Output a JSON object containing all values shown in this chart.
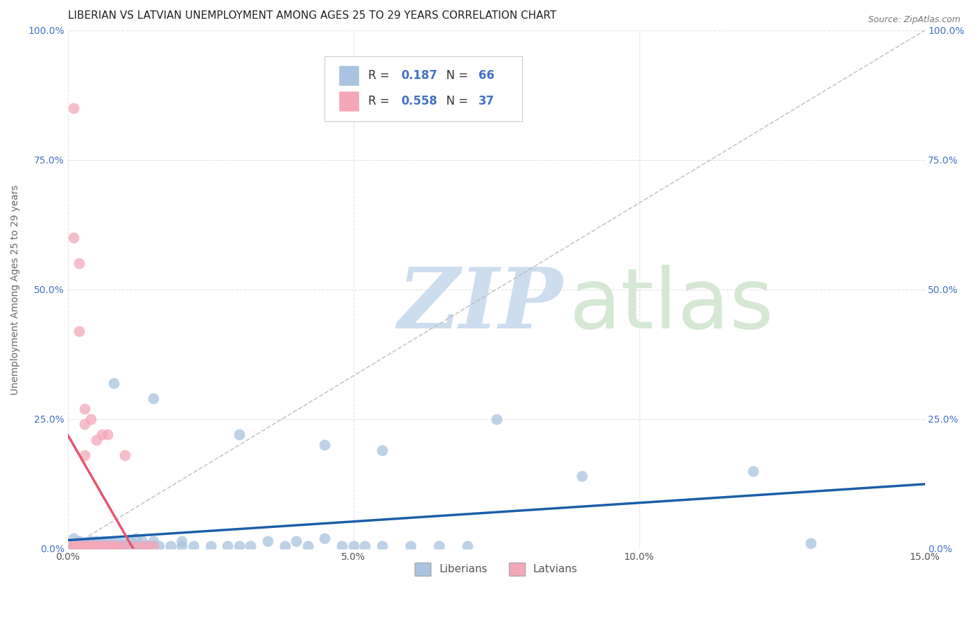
{
  "title": "LIBERIAN VS LATVIAN UNEMPLOYMENT AMONG AGES 25 TO 29 YEARS CORRELATION CHART",
  "source": "Source: ZipAtlas.com",
  "ylabel": "Unemployment Among Ages 25 to 29 years",
  "xlim": [
    0.0,
    0.15
  ],
  "ylim": [
    0.0,
    1.0
  ],
  "xticks": [
    0.0,
    0.05,
    0.1,
    0.15
  ],
  "xtick_labels": [
    "0.0%",
    "5.0%",
    "10.0%",
    "15.0%"
  ],
  "yticks": [
    0.0,
    0.25,
    0.5,
    0.75,
    1.0
  ],
  "ytick_labels": [
    "0.0%",
    "25.0%",
    "50.0%",
    "75.0%",
    "100.0%"
  ],
  "liberian_color": "#a8c4e0",
  "latvian_color": "#f4a7b9",
  "liberian_trend_color": "#1a5fa8",
  "latvian_trend_color": "#e8546a",
  "ref_line_color": "#b8b8b8",
  "R_liberian": 0.187,
  "N_liberian": 66,
  "R_latvian": 0.558,
  "N_latvian": 37,
  "liberian_points": [
    [
      0.001,
      0.01
    ],
    [
      0.001,
      0.005
    ],
    [
      0.001,
      0.02
    ],
    [
      0.001,
      0.005
    ],
    [
      0.002,
      0.01
    ],
    [
      0.002,
      0.005
    ],
    [
      0.002,
      0.015
    ],
    [
      0.002,
      0.005
    ],
    [
      0.003,
      0.005
    ],
    [
      0.003,
      0.01
    ],
    [
      0.003,
      0.005
    ],
    [
      0.004,
      0.005
    ],
    [
      0.004,
      0.01
    ],
    [
      0.004,
      0.015
    ],
    [
      0.005,
      0.005
    ],
    [
      0.005,
      0.01
    ],
    [
      0.005,
      0.015
    ],
    [
      0.006,
      0.005
    ],
    [
      0.006,
      0.015
    ],
    [
      0.007,
      0.005
    ],
    [
      0.007,
      0.015
    ],
    [
      0.008,
      0.005
    ],
    [
      0.008,
      0.01
    ],
    [
      0.009,
      0.005
    ],
    [
      0.009,
      0.01
    ],
    [
      0.01,
      0.005
    ],
    [
      0.01,
      0.01
    ],
    [
      0.011,
      0.005
    ],
    [
      0.011,
      0.015
    ],
    [
      0.012,
      0.005
    ],
    [
      0.012,
      0.02
    ],
    [
      0.013,
      0.005
    ],
    [
      0.013,
      0.015
    ],
    [
      0.014,
      0.005
    ],
    [
      0.015,
      0.005
    ],
    [
      0.015,
      0.015
    ],
    [
      0.016,
      0.005
    ],
    [
      0.018,
      0.005
    ],
    [
      0.02,
      0.005
    ],
    [
      0.02,
      0.015
    ],
    [
      0.022,
      0.005
    ],
    [
      0.025,
      0.005
    ],
    [
      0.028,
      0.005
    ],
    [
      0.03,
      0.005
    ],
    [
      0.032,
      0.005
    ],
    [
      0.035,
      0.015
    ],
    [
      0.038,
      0.005
    ],
    [
      0.04,
      0.015
    ],
    [
      0.042,
      0.005
    ],
    [
      0.045,
      0.02
    ],
    [
      0.048,
      0.005
    ],
    [
      0.05,
      0.005
    ],
    [
      0.052,
      0.005
    ],
    [
      0.055,
      0.005
    ],
    [
      0.06,
      0.005
    ],
    [
      0.065,
      0.005
    ],
    [
      0.07,
      0.005
    ],
    [
      0.008,
      0.32
    ],
    [
      0.015,
      0.29
    ],
    [
      0.03,
      0.22
    ],
    [
      0.045,
      0.2
    ],
    [
      0.055,
      0.19
    ],
    [
      0.075,
      0.25
    ],
    [
      0.09,
      0.14
    ],
    [
      0.12,
      0.15
    ],
    [
      0.13,
      0.01
    ]
  ],
  "latvian_points": [
    [
      0.001,
      0.005
    ],
    [
      0.001,
      0.005
    ],
    [
      0.001,
      0.005
    ],
    [
      0.002,
      0.005
    ],
    [
      0.002,
      0.005
    ],
    [
      0.002,
      0.005
    ],
    [
      0.003,
      0.005
    ],
    [
      0.003,
      0.005
    ],
    [
      0.003,
      0.27
    ],
    [
      0.004,
      0.005
    ],
    [
      0.004,
      0.005
    ],
    [
      0.004,
      0.005
    ],
    [
      0.005,
      0.005
    ],
    [
      0.005,
      0.005
    ],
    [
      0.006,
      0.005
    ],
    [
      0.006,
      0.005
    ],
    [
      0.007,
      0.005
    ],
    [
      0.007,
      0.005
    ],
    [
      0.008,
      0.005
    ],
    [
      0.008,
      0.005
    ],
    [
      0.009,
      0.005
    ],
    [
      0.01,
      0.005
    ],
    [
      0.01,
      0.18
    ],
    [
      0.012,
      0.005
    ],
    [
      0.013,
      0.005
    ],
    [
      0.014,
      0.005
    ],
    [
      0.015,
      0.005
    ],
    [
      0.001,
      0.6
    ],
    [
      0.002,
      0.55
    ],
    [
      0.002,
      0.42
    ],
    [
      0.001,
      0.85
    ],
    [
      0.003,
      0.24
    ],
    [
      0.003,
      0.18
    ],
    [
      0.004,
      0.25
    ],
    [
      0.005,
      0.21
    ],
    [
      0.006,
      0.22
    ],
    [
      0.007,
      0.22
    ]
  ],
  "watermark_zip": "ZIP",
  "watermark_atlas": "atlas",
  "watermark_color_zip": "#ccddef",
  "watermark_color_atlas": "#d5e8d4",
  "background_color": "#ffffff",
  "grid_color": "#e0e0e0",
  "title_fontsize": 11,
  "tick_label_color": "#555555",
  "tick_label_color_right": "#4472c4",
  "legend_text_color": "#333333",
  "legend_value_color": "#4472c4"
}
